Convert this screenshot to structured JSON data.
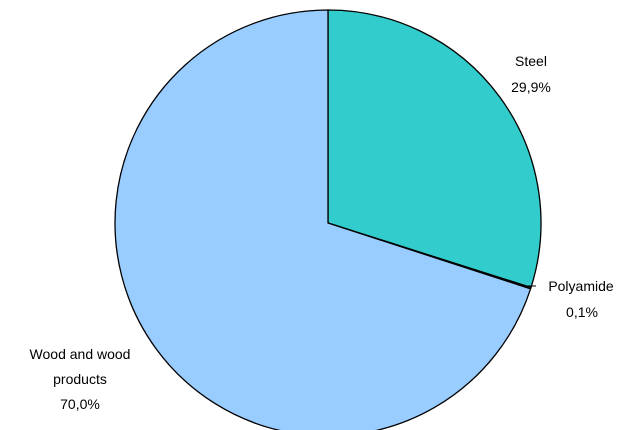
{
  "chart_data": {
    "type": "pie",
    "title": "",
    "start_angle_deg": 0,
    "direction": "clockwise",
    "outline_color": "#000000",
    "slices": [
      {
        "label": "Steel",
        "value_label": "29,9%",
        "value": 29.9,
        "color": "#33CCCC"
      },
      {
        "label": "Polyamide",
        "value_label": "0,1%",
        "value": 0.1,
        "color": "#ffffff"
      },
      {
        "label": "Wood and wood products",
        "label_lines": [
          "Wood and wood",
          "products"
        ],
        "value_label": "70,0%",
        "value": 70.0,
        "color": "#99CCFF"
      }
    ]
  }
}
